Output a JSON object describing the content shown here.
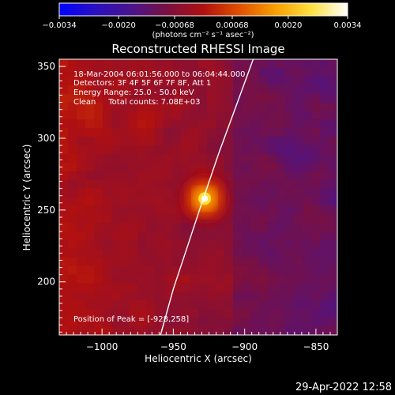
{
  "chart_data": {
    "type": "heatmap",
    "title": "Reconstructed RHESSI Image",
    "xlabel": "Heliocentric X (arcsec)",
    "ylabel": "Heliocentric Y (arcsec)",
    "xlim": [
      -1030,
      -835
    ],
    "ylim": [
      163,
      355
    ],
    "x_ticks": [
      -1000,
      -950,
      -900,
      -850
    ],
    "x_tick_labels": [
      "−1000",
      "−950",
      "−900",
      "−850"
    ],
    "y_ticks": [
      200,
      250,
      300,
      350
    ],
    "y_tick_labels": [
      "200",
      "250",
      "300",
      "350"
    ],
    "colorbar": {
      "range": [
        -0.0034,
        0.0034
      ],
      "ticks": [
        -0.0034,
        -0.002,
        -0.00068,
        0.00068,
        0.002,
        0.0034
      ],
      "tick_labels": [
        "−0.0034",
        "−0.0020",
        "−0.00068",
        "0.00068",
        "0.0020",
        "0.0034"
      ],
      "units_label": "(photons cm⁻² s⁻¹ asec⁻²)",
      "colormap": [
        "#0000ff",
        "#2a10c0",
        "#4a148c",
        "#7a1040",
        "#b01010",
        "#e05000",
        "#f8a000",
        "#ffe040",
        "#ffffff"
      ]
    },
    "annotations": {
      "time_range": "18-Mar-2004 06:01:56.000 to 06:04:44.000",
      "detectors": "Detectors: 3F 4F 5F 6F 7F 8F, Att 1",
      "energy": "Energy Range: 25.0 - 50.0 keV",
      "clean": "Clean     Total counts: 7.08E+03",
      "peak": "Position of Peak = [-928,258]"
    },
    "peak_source": {
      "x": -928,
      "y": 258,
      "value": 0.0034
    },
    "limb_curve": [
      {
        "x": -959,
        "y": 163
      },
      {
        "x": -950,
        "y": 195
      },
      {
        "x": -940,
        "y": 225
      },
      {
        "x": -930,
        "y": 255
      },
      {
        "x": -918,
        "y": 290
      },
      {
        "x": -905,
        "y": 325
      },
      {
        "x": -894,
        "y": 355
      }
    ],
    "timestamp": "29-Apr-2022 12:58"
  }
}
